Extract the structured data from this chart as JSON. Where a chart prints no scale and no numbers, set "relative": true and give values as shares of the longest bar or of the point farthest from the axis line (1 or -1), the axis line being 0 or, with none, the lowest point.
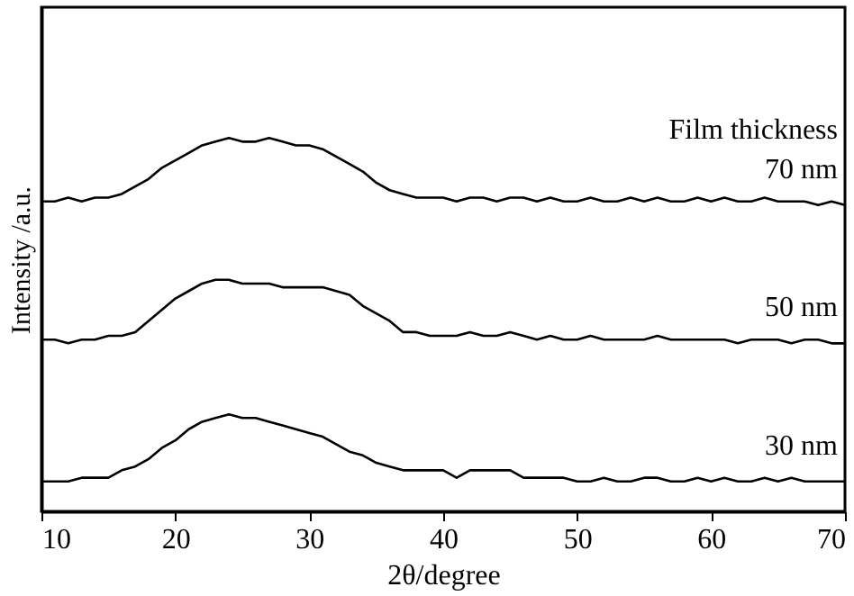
{
  "chart_data": {
    "type": "line",
    "relative": true,
    "xlabel": "2θ/degree",
    "ylabel": "Intensity /a.u.",
    "annotations": [
      "Film thickness"
    ],
    "x": [
      10,
      11,
      12,
      13,
      14,
      15,
      16,
      17,
      18,
      19,
      20,
      21,
      22,
      23,
      24,
      25,
      26,
      27,
      28,
      29,
      30,
      31,
      32,
      33,
      34,
      35,
      36,
      37,
      38,
      39,
      40,
      41,
      42,
      43,
      44,
      45,
      46,
      47,
      48,
      49,
      50,
      51,
      52,
      53,
      54,
      55,
      56,
      57,
      58,
      59,
      60,
      61,
      62,
      63,
      64,
      65,
      66,
      67,
      68,
      69,
      70
    ],
    "xlim": [
      10,
      70
    ],
    "xticks": [
      10,
      20,
      30,
      40,
      50,
      60,
      70
    ],
    "grid": false,
    "legend": false,
    "marker": "none",
    "line_style": "solid",
    "series": [
      {
        "name": "70 nm",
        "color": "#000000",
        "values": [
          0.83,
          0.83,
          0.84,
          0.83,
          0.84,
          0.84,
          0.85,
          0.87,
          0.89,
          0.92,
          0.94,
          0.96,
          0.98,
          0.99,
          1.0,
          0.99,
          0.99,
          1.0,
          0.99,
          0.98,
          0.98,
          0.97,
          0.95,
          0.93,
          0.91,
          0.88,
          0.86,
          0.85,
          0.84,
          0.84,
          0.84,
          0.83,
          0.84,
          0.84,
          0.83,
          0.84,
          0.84,
          0.83,
          0.84,
          0.83,
          0.83,
          0.84,
          0.83,
          0.83,
          0.84,
          0.83,
          0.84,
          0.83,
          0.83,
          0.84,
          0.83,
          0.84,
          0.83,
          0.83,
          0.84,
          0.83,
          0.83,
          0.83,
          0.82,
          0.83,
          0.82
        ]
      },
      {
        "name": "50 nm",
        "color": "#000000",
        "values": [
          0.46,
          0.46,
          0.45,
          0.46,
          0.46,
          0.47,
          0.47,
          0.48,
          0.51,
          0.54,
          0.57,
          0.59,
          0.61,
          0.62,
          0.62,
          0.61,
          0.61,
          0.61,
          0.6,
          0.6,
          0.6,
          0.6,
          0.59,
          0.58,
          0.55,
          0.53,
          0.51,
          0.48,
          0.48,
          0.47,
          0.47,
          0.47,
          0.48,
          0.47,
          0.47,
          0.48,
          0.47,
          0.46,
          0.47,
          0.46,
          0.46,
          0.47,
          0.46,
          0.46,
          0.46,
          0.46,
          0.47,
          0.46,
          0.46,
          0.46,
          0.46,
          0.46,
          0.45,
          0.46,
          0.46,
          0.46,
          0.45,
          0.46,
          0.46,
          0.45,
          0.45
        ]
      },
      {
        "name": "30 nm",
        "color": "#000000",
        "values": [
          0.08,
          0.08,
          0.08,
          0.09,
          0.09,
          0.09,
          0.11,
          0.12,
          0.14,
          0.17,
          0.19,
          0.22,
          0.24,
          0.25,
          0.26,
          0.25,
          0.25,
          0.24,
          0.23,
          0.22,
          0.21,
          0.2,
          0.18,
          0.16,
          0.15,
          0.13,
          0.12,
          0.11,
          0.11,
          0.11,
          0.11,
          0.09,
          0.11,
          0.11,
          0.11,
          0.11,
          0.09,
          0.09,
          0.09,
          0.09,
          0.08,
          0.08,
          0.09,
          0.08,
          0.08,
          0.09,
          0.09,
          0.08,
          0.08,
          0.09,
          0.08,
          0.09,
          0.08,
          0.08,
          0.09,
          0.08,
          0.09,
          0.08,
          0.08,
          0.08,
          0.08
        ]
      }
    ]
  }
}
